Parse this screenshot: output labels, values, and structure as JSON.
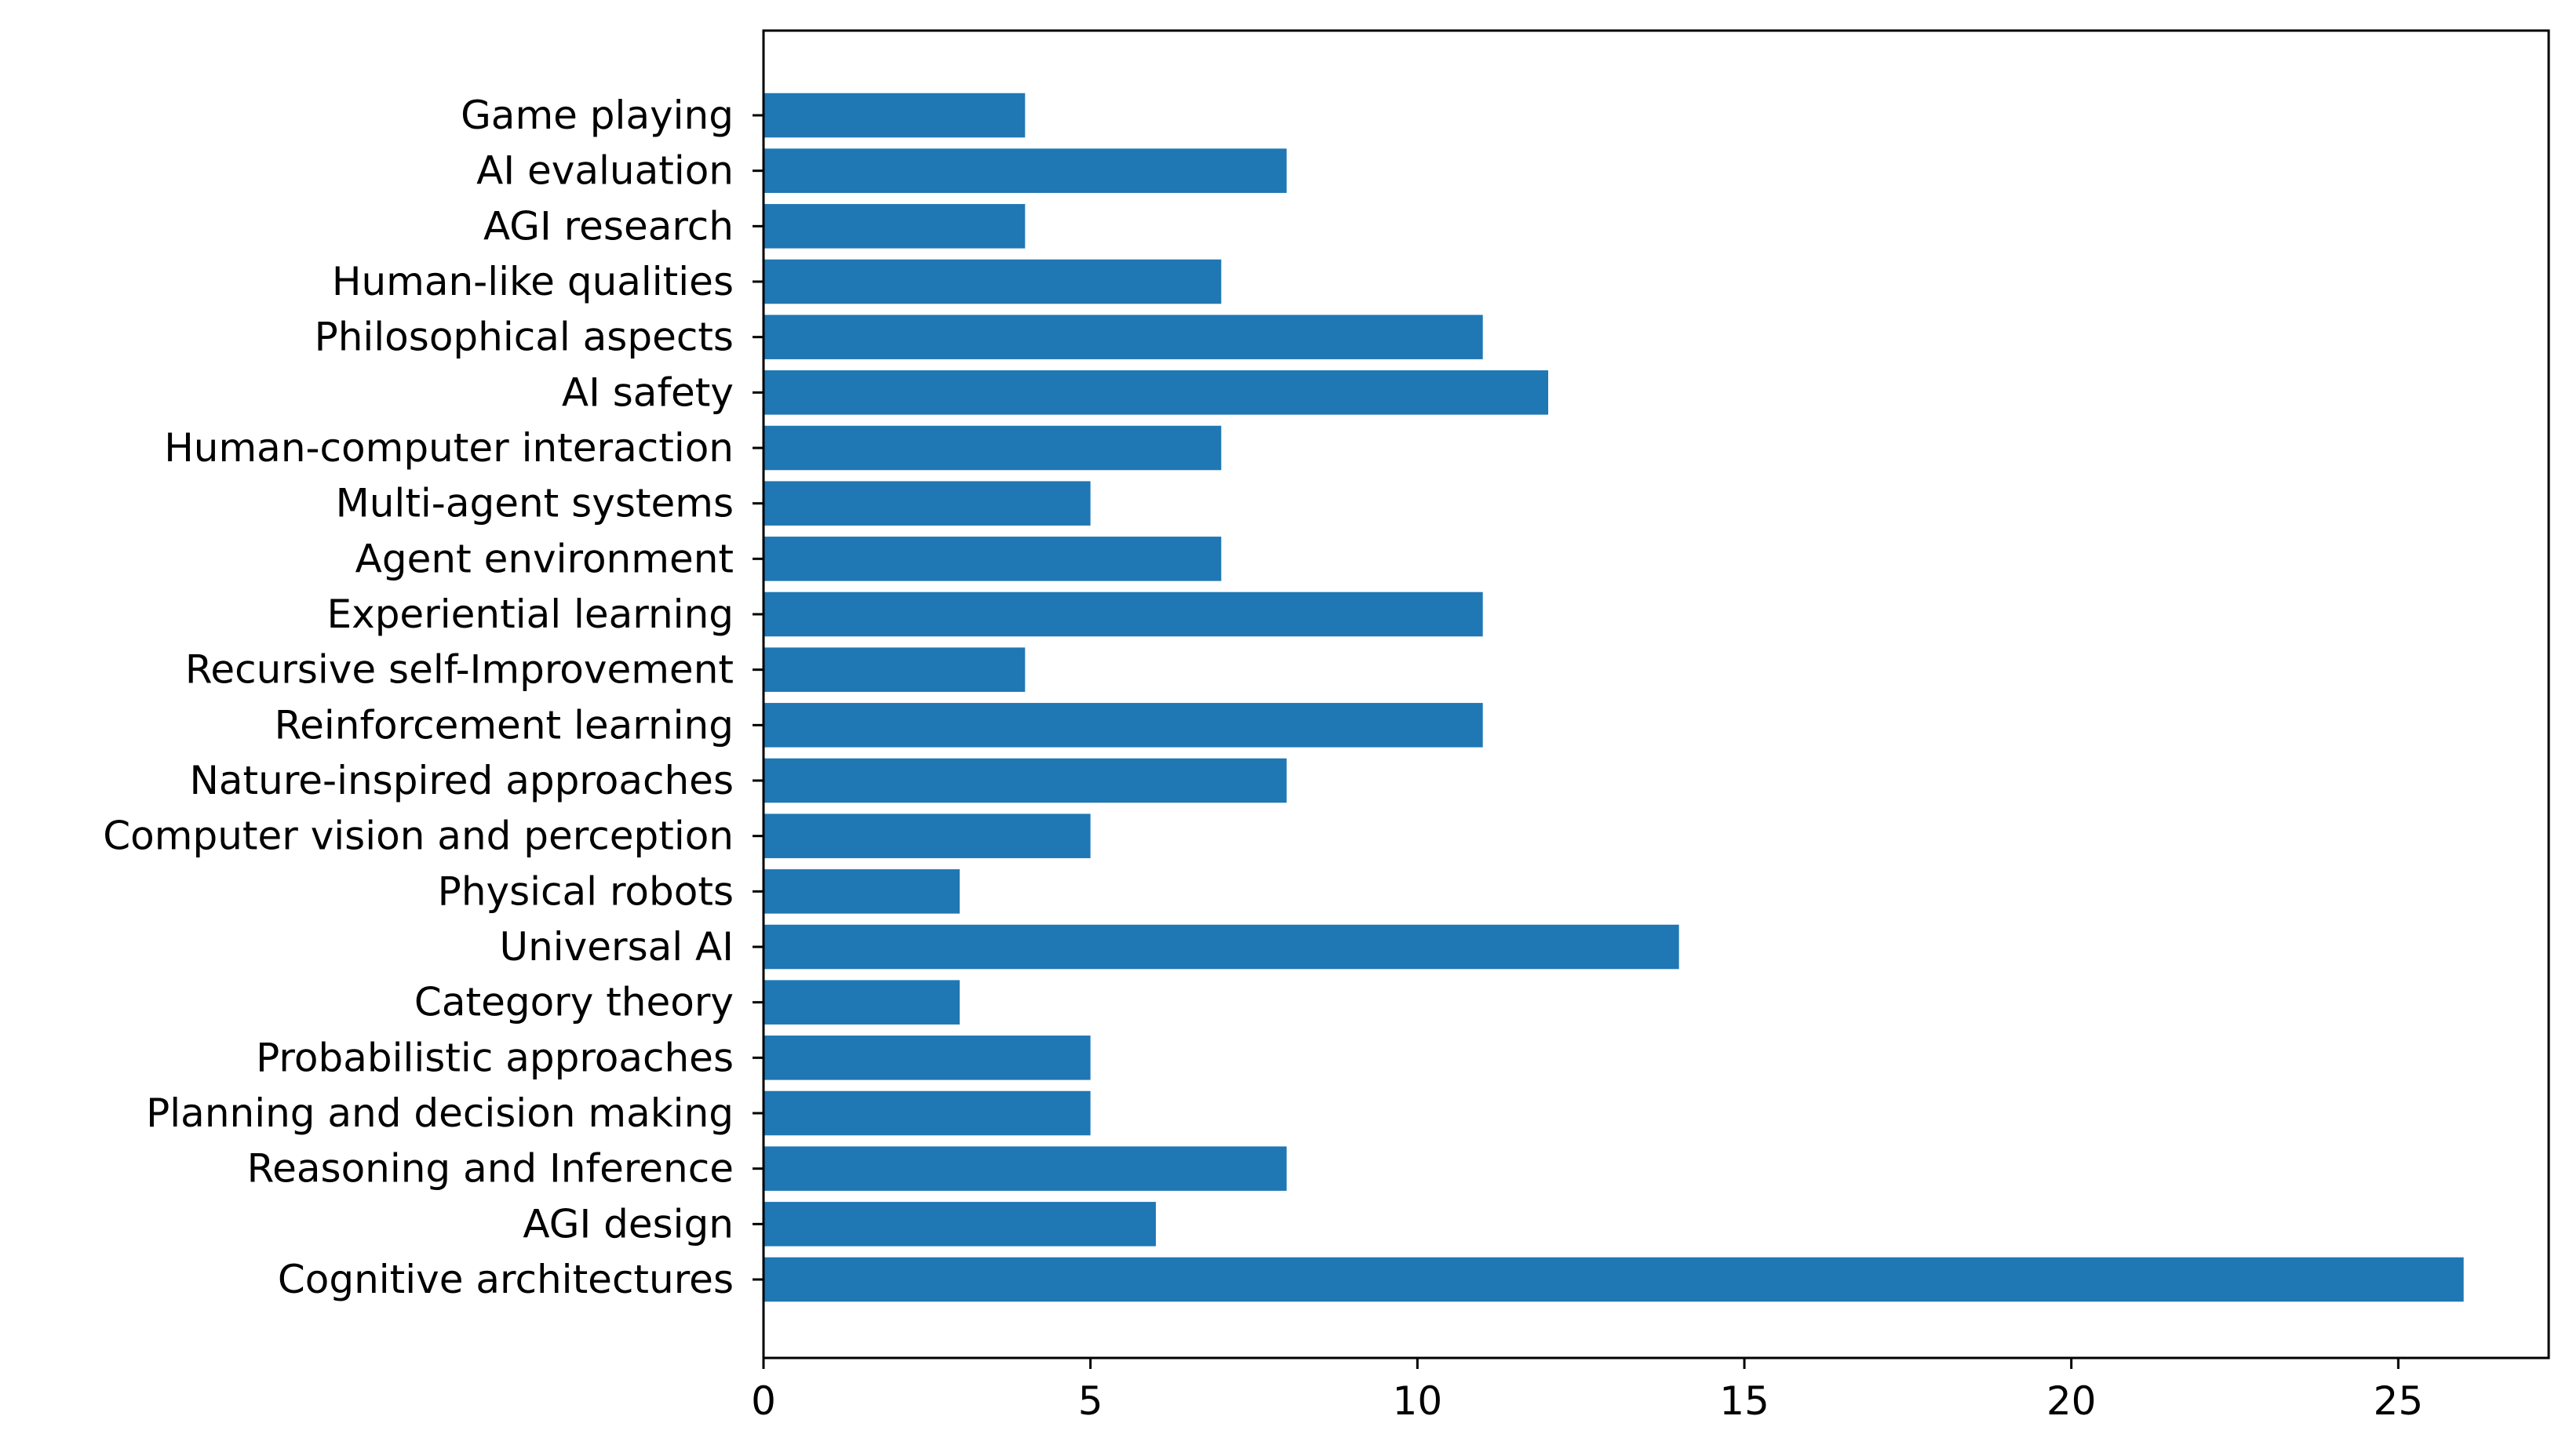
{
  "chart_data": {
    "type": "bar",
    "orientation": "horizontal",
    "title": "",
    "xlabel": "",
    "ylabel": "",
    "categories": [
      "Cognitive architectures",
      "AGI design",
      "Reasoning and Inference",
      "Planning and decision making",
      "Probabilistic approaches",
      "Category theory",
      "Universal AI",
      "Physical robots",
      "Computer vision and perception",
      "Nature-inspired approaches",
      "Reinforcement learning",
      "Recursive self-Improvement",
      "Experiential learning",
      "Agent environment",
      "Multi-agent systems",
      "Human-computer interaction",
      "AI safety",
      "Philosophical aspects",
      "Human-like qualities",
      "AGI research",
      "AI evaluation",
      "Game playing"
    ],
    "values": [
      26,
      6,
      8,
      5,
      5,
      3,
      14,
      3,
      5,
      8,
      11,
      4,
      11,
      7,
      5,
      7,
      12,
      11,
      7,
      4,
      8,
      4
    ],
    "xlim": [
      0,
      27.3
    ],
    "xticks": [
      0,
      5,
      10,
      15,
      20,
      25
    ],
    "xtick_labels": [
      "0",
      "5",
      "10",
      "15",
      "20",
      "25"
    ],
    "grid": false,
    "bar_color": "#1f77b4"
  }
}
